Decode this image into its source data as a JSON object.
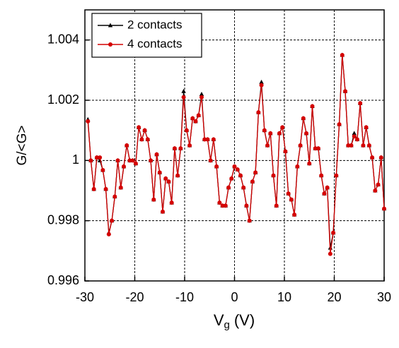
{
  "chart_data": {
    "type": "line",
    "y_label": "G/<G>",
    "x_label": "V",
    "x_label_subscript": "g",
    "x_label_unit": "(V)",
    "xlim": [
      -30,
      30
    ],
    "xticks": [
      -30,
      -20,
      -10,
      0,
      10,
      20,
      30
    ],
    "ylim": [
      0.996,
      1.005
    ],
    "yticks": [
      0.996,
      0.998,
      1,
      1.002,
      1.004
    ],
    "grid": true,
    "legend": "upper left",
    "x": [
      -29.4,
      -28.8,
      -28.2,
      -27.6,
      -27,
      -26.4,
      -25.8,
      -25.2,
      -24.6,
      -24,
      -23.4,
      -22.8,
      -22.2,
      -21.6,
      -21,
      -20.4,
      -19.8,
      -19.2,
      -18.6,
      -18,
      -17.4,
      -16.8,
      -16.2,
      -15.6,
      -15,
      -14.4,
      -13.8,
      -13.2,
      -12.6,
      -12,
      -11.4,
      -10.8,
      -10.2,
      -9.6,
      -9,
      -8.4,
      -7.8,
      -7.2,
      -6.6,
      -6,
      -5.4,
      -4.8,
      -4.2,
      -3.6,
      -3,
      -2.4,
      -1.8,
      -1.2,
      -0.6,
      0,
      0.6,
      1.2,
      1.8,
      2.4,
      3,
      3.6,
      4.2,
      4.8,
      5.4,
      6,
      6.6,
      7.2,
      7.8,
      8.4,
      9,
      9.6,
      10.2,
      10.8,
      11.4,
      12,
      12.6,
      13.2,
      13.8,
      14.4,
      15,
      15.6,
      16.2,
      16.8,
      17.4,
      18,
      18.6,
      19.2,
      19.8,
      20.4,
      21,
      21.6,
      22.2,
      22.8,
      23.4,
      24,
      24.6,
      25.2,
      25.8,
      26.4,
      27,
      27.6,
      28.2,
      28.8,
      29.4,
      30
    ],
    "series": [
      {
        "name": "2 contacts",
        "color": "#000000",
        "marker": "triangle",
        "values": [
          1.00136,
          1.0,
          0.99905,
          1.0001,
          1.0,
          0.99968,
          0.99905,
          0.9976,
          0.998,
          0.9988,
          1.0,
          0.9991,
          0.9998,
          1.0005,
          1.0,
          1.0,
          0.9999,
          1.0011,
          1.0007,
          1.001,
          1.0007,
          1.0,
          0.9987,
          1.0002,
          0.9996,
          0.9983,
          0.9994,
          0.9993,
          0.9986,
          1.0004,
          0.9995,
          1.0004,
          1.0023,
          1.001,
          1.0005,
          1.0014,
          1.0013,
          1.0015,
          1.0022,
          1.0007,
          1.0007,
          1.0,
          1.0007,
          0.9998,
          0.9986,
          0.9985,
          0.9985,
          0.9991,
          0.9994,
          0.9998,
          0.9997,
          0.9995,
          0.9991,
          0.9985,
          0.998,
          0.9993,
          0.9996,
          1.0016,
          1.0026,
          1.001,
          1.0005,
          1.0009,
          0.9995,
          0.9985,
          1.0009,
          1.0011,
          1.0003,
          0.9989,
          0.9987,
          0.9982,
          0.9998,
          1.0005,
          1.0014,
          1.0009,
          0.9999,
          1.0018,
          1.0004,
          1.0004,
          0.9995,
          0.9989,
          0.9991,
          0.9971,
          0.9976,
          0.9995,
          1.0012,
          1.0035,
          1.0023,
          1.0005,
          1.0005,
          1.0009,
          1.0007,
          1.0019,
          1.0005,
          1.0011,
          1.0005,
          1.0001,
          0.999,
          0.9992,
          1.0001,
          0.9984
        ]
      },
      {
        "name": "4 contacts",
        "color": "#d40000",
        "marker": "circle",
        "values": [
          1.0013,
          1.0,
          0.99905,
          1.0001,
          1.0001,
          0.99968,
          0.99905,
          0.99755,
          0.998,
          0.9988,
          1.0,
          0.9991,
          0.9998,
          1.0005,
          1.0,
          1.0,
          0.9999,
          1.0011,
          1.0007,
          1.001,
          1.0007,
          1.0,
          0.9987,
          1.0002,
          0.9996,
          0.9983,
          0.9994,
          0.9993,
          0.9986,
          1.0004,
          0.9995,
          1.0004,
          1.0021,
          1.001,
          1.0005,
          1.0014,
          1.0013,
          1.0015,
          1.0021,
          1.0007,
          1.0007,
          1.0,
          1.0007,
          0.9998,
          0.9986,
          0.9985,
          0.9985,
          0.9991,
          0.9994,
          0.9998,
          0.9997,
          0.9995,
          0.9991,
          0.9985,
          0.998,
          0.9993,
          0.9996,
          1.0016,
          1.0025,
          1.001,
          1.0005,
          1.0009,
          0.9995,
          0.9985,
          1.0009,
          1.0011,
          1.0003,
          0.9989,
          0.9987,
          0.9982,
          0.9998,
          1.0005,
          1.0014,
          1.0009,
          0.9999,
          1.0018,
          1.0004,
          1.0004,
          0.9995,
          0.9989,
          0.9991,
          0.9969,
          0.9976,
          0.9995,
          1.0012,
          1.0035,
          1.0023,
          1.0005,
          1.0005,
          1.0008,
          1.0007,
          1.0019,
          1.0005,
          1.0011,
          1.0005,
          1.0001,
          0.999,
          0.9992,
          1.0001,
          0.9984
        ]
      }
    ]
  }
}
